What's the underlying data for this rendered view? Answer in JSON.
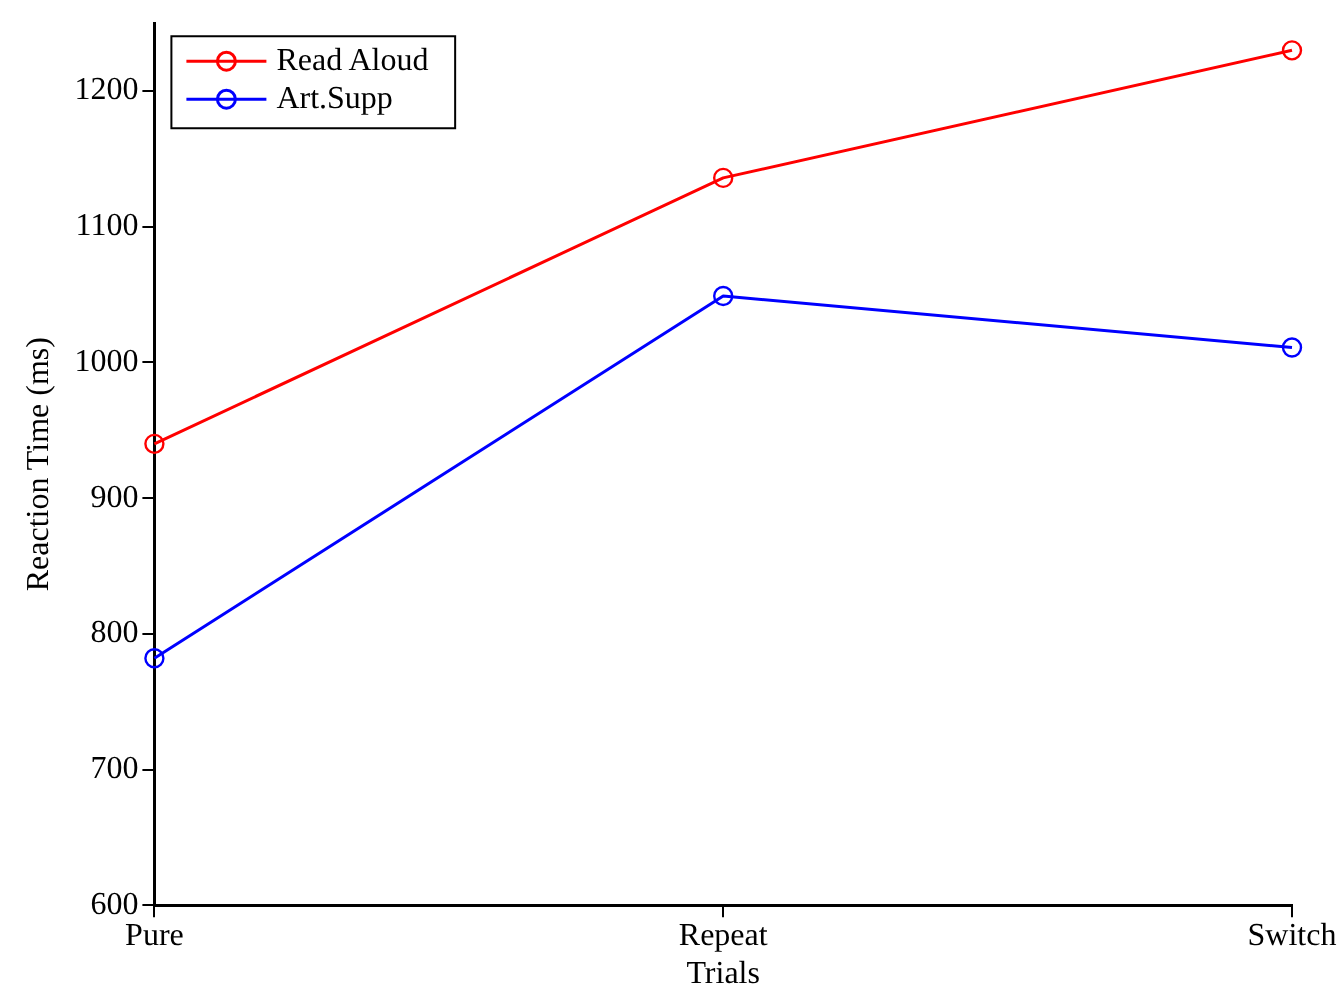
{
  "chart_data": {
    "type": "line",
    "xlabel": "Trials",
    "ylabel": "Reaction Time (ms)",
    "categories": [
      "Pure",
      "Repeat",
      "Switch"
    ],
    "series": [
      {
        "name": "Read Aloud",
        "color": "#ff0000",
        "values": [
          940,
          1136,
          1230
        ]
      },
      {
        "name": "Art.Supp",
        "color": "#0000ff",
        "values": [
          782,
          1049,
          1011
        ]
      }
    ],
    "ylim": [
      600,
      1250
    ],
    "yticks": [
      600,
      700,
      800,
      900,
      1000,
      1100,
      1200
    ],
    "grid": false,
    "legend": "top left",
    "marker": "circle",
    "line_style": "solid"
  }
}
